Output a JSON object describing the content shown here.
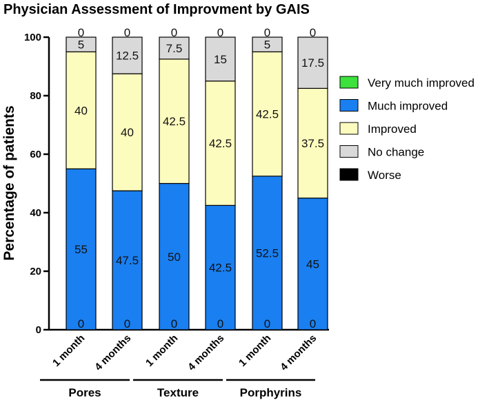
{
  "chart_data": {
    "type": "bar",
    "stacked": true,
    "title": "Physician  Assessment of Improvment by GAIS",
    "xlabel": "",
    "ylabel": "Percentage of patients",
    "ylim": [
      0,
      100
    ],
    "yticks": [
      "0",
      "20",
      "40",
      "60",
      "80",
      "100"
    ],
    "categories": [
      "1 month",
      "4 months",
      "1 month",
      "4 months",
      "1 month",
      "4 months"
    ],
    "groups": [
      {
        "name": "Pores",
        "categories": [
          0,
          1
        ]
      },
      {
        "name": "Texture",
        "categories": [
          2,
          3
        ]
      },
      {
        "name": "Porphyrins",
        "categories": [
          4,
          5
        ]
      }
    ],
    "series": [
      {
        "name": "Worse",
        "color": "#000000",
        "values": [
          0,
          0,
          0,
          0,
          0,
          0
        ]
      },
      {
        "name": "Much improved",
        "color": "#1a7ff0",
        "values": [
          55,
          47.5,
          50,
          42.5,
          52.5,
          45
        ]
      },
      {
        "name": "Improved",
        "color": "#fdfcbf",
        "values": [
          40,
          40,
          42.5,
          42.5,
          42.5,
          37.5
        ]
      },
      {
        "name": "No change",
        "color": "#d9d9d9",
        "values": [
          5,
          12.5,
          7.5,
          15,
          5,
          17.5
        ]
      },
      {
        "name": "Very much improved",
        "color": "#3de13d",
        "values": [
          0,
          0,
          0,
          0,
          0,
          0
        ]
      }
    ],
    "legend": {
      "placement": "right",
      "order": [
        "Very much improved",
        "Much improved",
        "Improved",
        "No change",
        "Worse"
      ]
    }
  }
}
